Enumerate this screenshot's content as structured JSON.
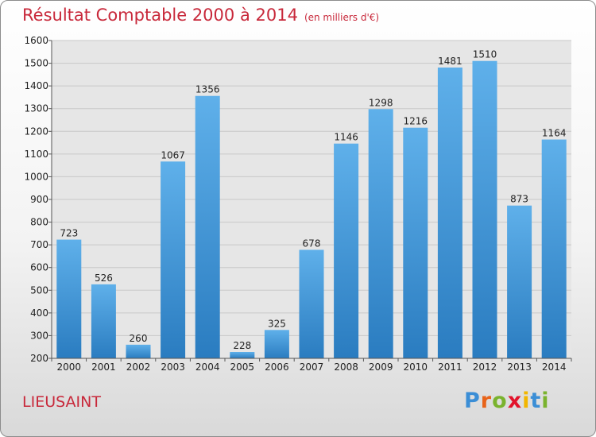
{
  "header": {
    "title": "Résultat Comptable 2000 à 2014",
    "subtitle": "(en milliers d'€)"
  },
  "footer": {
    "city": "LIEUSAINT",
    "logo": {
      "letters": [
        "P",
        "r",
        "o",
        "x",
        "i",
        "t",
        "i"
      ],
      "colors": [
        "#3b8ed6",
        "#e8641a",
        "#7ab32e",
        "#e2132b",
        "#f2b600",
        "#3b8ed6",
        "#7ab32e"
      ]
    }
  },
  "chart_data": {
    "type": "bar",
    "title": "Résultat Comptable 2000 à 2014",
    "subtitle": "(en milliers d'€)",
    "categories": [
      "2000",
      "2001",
      "2002",
      "2003",
      "2004",
      "2005",
      "2006",
      "2007",
      "2008",
      "2009",
      "2010",
      "2011",
      "2012",
      "2013",
      "2014"
    ],
    "values": [
      723,
      526,
      260,
      1067,
      1356,
      228,
      325,
      678,
      1146,
      1298,
      1216,
      1481,
      1510,
      873,
      1164
    ],
    "xlabel": "",
    "ylabel": "",
    "ylim": [
      200,
      1600
    ],
    "yticks": [
      200,
      300,
      400,
      500,
      600,
      700,
      800,
      900,
      1000,
      1100,
      1200,
      1300,
      1400,
      1500,
      1600
    ],
    "grid": true,
    "data_labels": true,
    "colors": {
      "bar_top": "#5fb0ea",
      "bar_bottom": "#2a7cc0",
      "grid": "#c8c8c8",
      "plot_bg": "#e6e6e6"
    }
  }
}
